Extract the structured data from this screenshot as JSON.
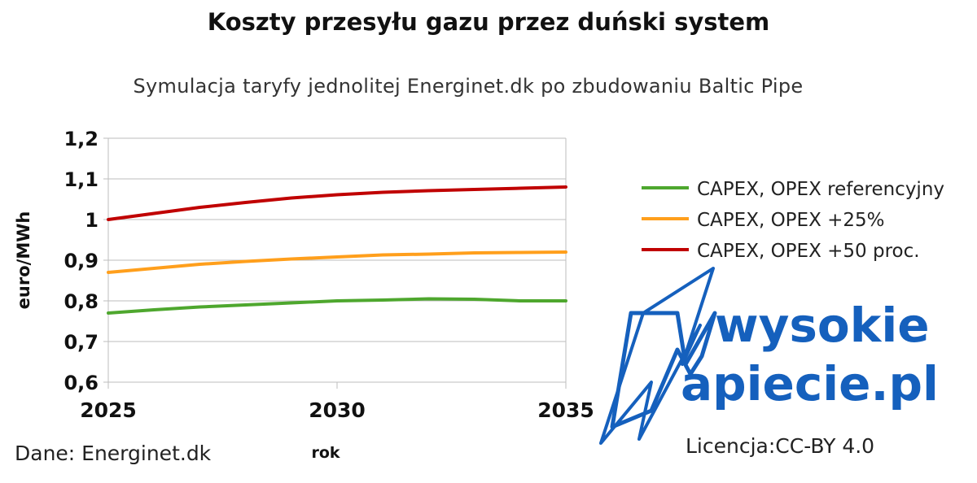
{
  "chart_data": {
    "type": "line",
    "title": "Koszty przesyłu gazu przez duński system",
    "subtitle": "Symulacja taryfy jednolitej Energinet.dk po zbudowaniu Baltic Pipe",
    "xlabel": "rok",
    "ylabel": "euro/MWh",
    "xlim": [
      2025,
      2035
    ],
    "ylim": [
      0.6,
      1.2
    ],
    "x_ticks": [
      "2025",
      "2030",
      "2035"
    ],
    "y_ticks": [
      "0,6",
      "0,7",
      "0,8",
      "0,9",
      "1",
      "1,1",
      "1,2"
    ],
    "grid": "horizontal",
    "legend": "right",
    "x": [
      2025,
      2026,
      2027,
      2028,
      2029,
      2030,
      2031,
      2032,
      2033,
      2034,
      2035
    ],
    "series": [
      {
        "name": "CAPEX, OPEX referencyjny",
        "color": "#4ea72e",
        "values": [
          0.77,
          0.778,
          0.785,
          0.79,
          0.795,
          0.8,
          0.802,
          0.805,
          0.804,
          0.8,
          0.8
        ]
      },
      {
        "name": "CAPEX, OPEX +25%",
        "color": "#ff9f1c",
        "values": [
          0.87,
          0.88,
          0.89,
          0.897,
          0.903,
          0.908,
          0.913,
          0.915,
          0.918,
          0.919,
          0.92
        ]
      },
      {
        "name": "CAPEX, OPEX +50 proc.",
        "color": "#c00000",
        "values": [
          1.0,
          1.015,
          1.03,
          1.042,
          1.053,
          1.061,
          1.067,
          1.071,
          1.074,
          1.077,
          1.08
        ]
      }
    ]
  },
  "footer": {
    "source": "Dane: Energinet.dk",
    "license": "Licencja:CC-BY 4.0"
  },
  "logo": {
    "line1": "wysokie",
    "line2": "apiecie.pl",
    "color": "#1560bd"
  }
}
